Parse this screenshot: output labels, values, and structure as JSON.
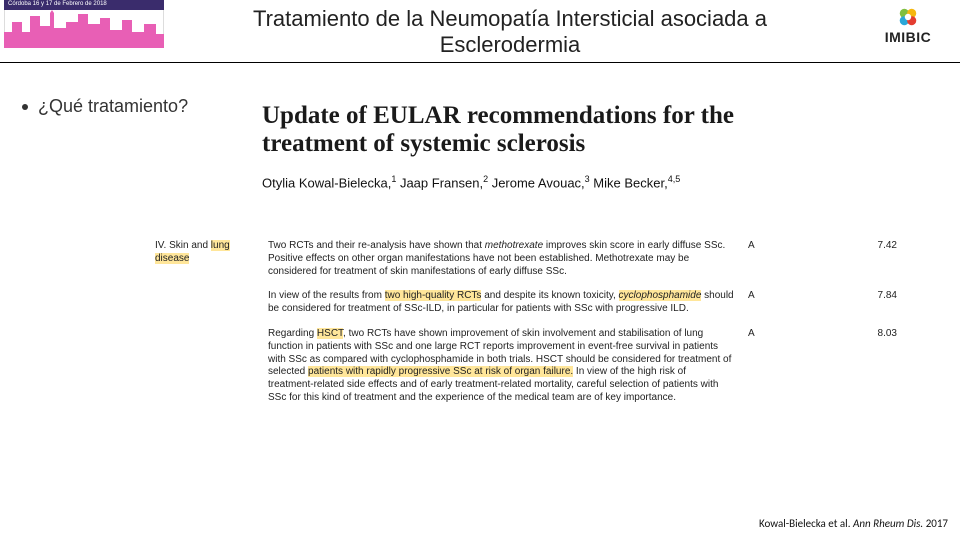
{
  "header": {
    "date_band": "Córdoba 16 y 17 de Febrero de 2018",
    "title_line1": "Tratamiento de la Neumopatía Intersticial asociada a",
    "title_line2": "Esclerodermia",
    "right_logo_text": "IMIBIC",
    "skyline_color": "#e85fb5",
    "skyline_stroke": "#d23ea0",
    "imibic_colors": {
      "g": "#7fbf3f",
      "y": "#f5b70f",
      "r": "#e43d30",
      "b": "#2aa7d8"
    }
  },
  "bullet": {
    "text": "¿Qué tratamiento?"
  },
  "article": {
    "title_l1": "Update of EULAR recommendations for the",
    "title_l2": "treatment of systemic sclerosis",
    "authors_html": "Otylia Kowal-Bielecka,<sup>1</sup> Jaap Fransen,<sup>2</sup> Jerome Avouac,<sup>3</sup> Mike Becker,<sup>4,5</sup>"
  },
  "recs": [
    {
      "section_html": "IV. Skin and <span class=\"hl\">lung disease</span>",
      "text_html": "Two RCTs and their re-analysis have shown that <i>methotrexate</i> improves skin score in early diffuse SSc. Positive effects on other organ manifestations have not been established. Methotrexate may be considered for treatment of skin manifestations of early diffuse SSc.",
      "grade": "A",
      "score": "7.42"
    },
    {
      "section_html": "",
      "text_html": "In view of the results from <span class=\"hl\">two high-quality RCTs</span> and despite its known toxicity, <span class=\"hl\"><i>cyclophosphamide</i></span> should be considered for treatment of SSc-ILD, in particular for patients with SSc with progressive ILD.",
      "grade": "A",
      "score": "7.84"
    },
    {
      "section_html": "",
      "text_html": "Regarding <span class=\"hl\">HSCT</span>, two RCTs have shown improvement of skin involvement and stabilisation of lung function in patients with SSc and one large RCT reports improvement in event-free survival in patients with SSc as compared with cyclophosphamide in both trials. HSCT should be considered for treatment of selected <span class=\"hl\">patients with rapidly progressive SSc at risk of organ failure.</span> In view of the high risk of treatment-related side effects and of early treatment-related mortality, careful selection of patients with SSc for this kind of treatment and the experience of the medical team are of key importance.",
      "grade": "A",
      "score": "8.03"
    }
  ],
  "citation": {
    "text_html": "Kowal-Bielecka et al. <i>Ann Rheum Dis.</i> 2017"
  }
}
